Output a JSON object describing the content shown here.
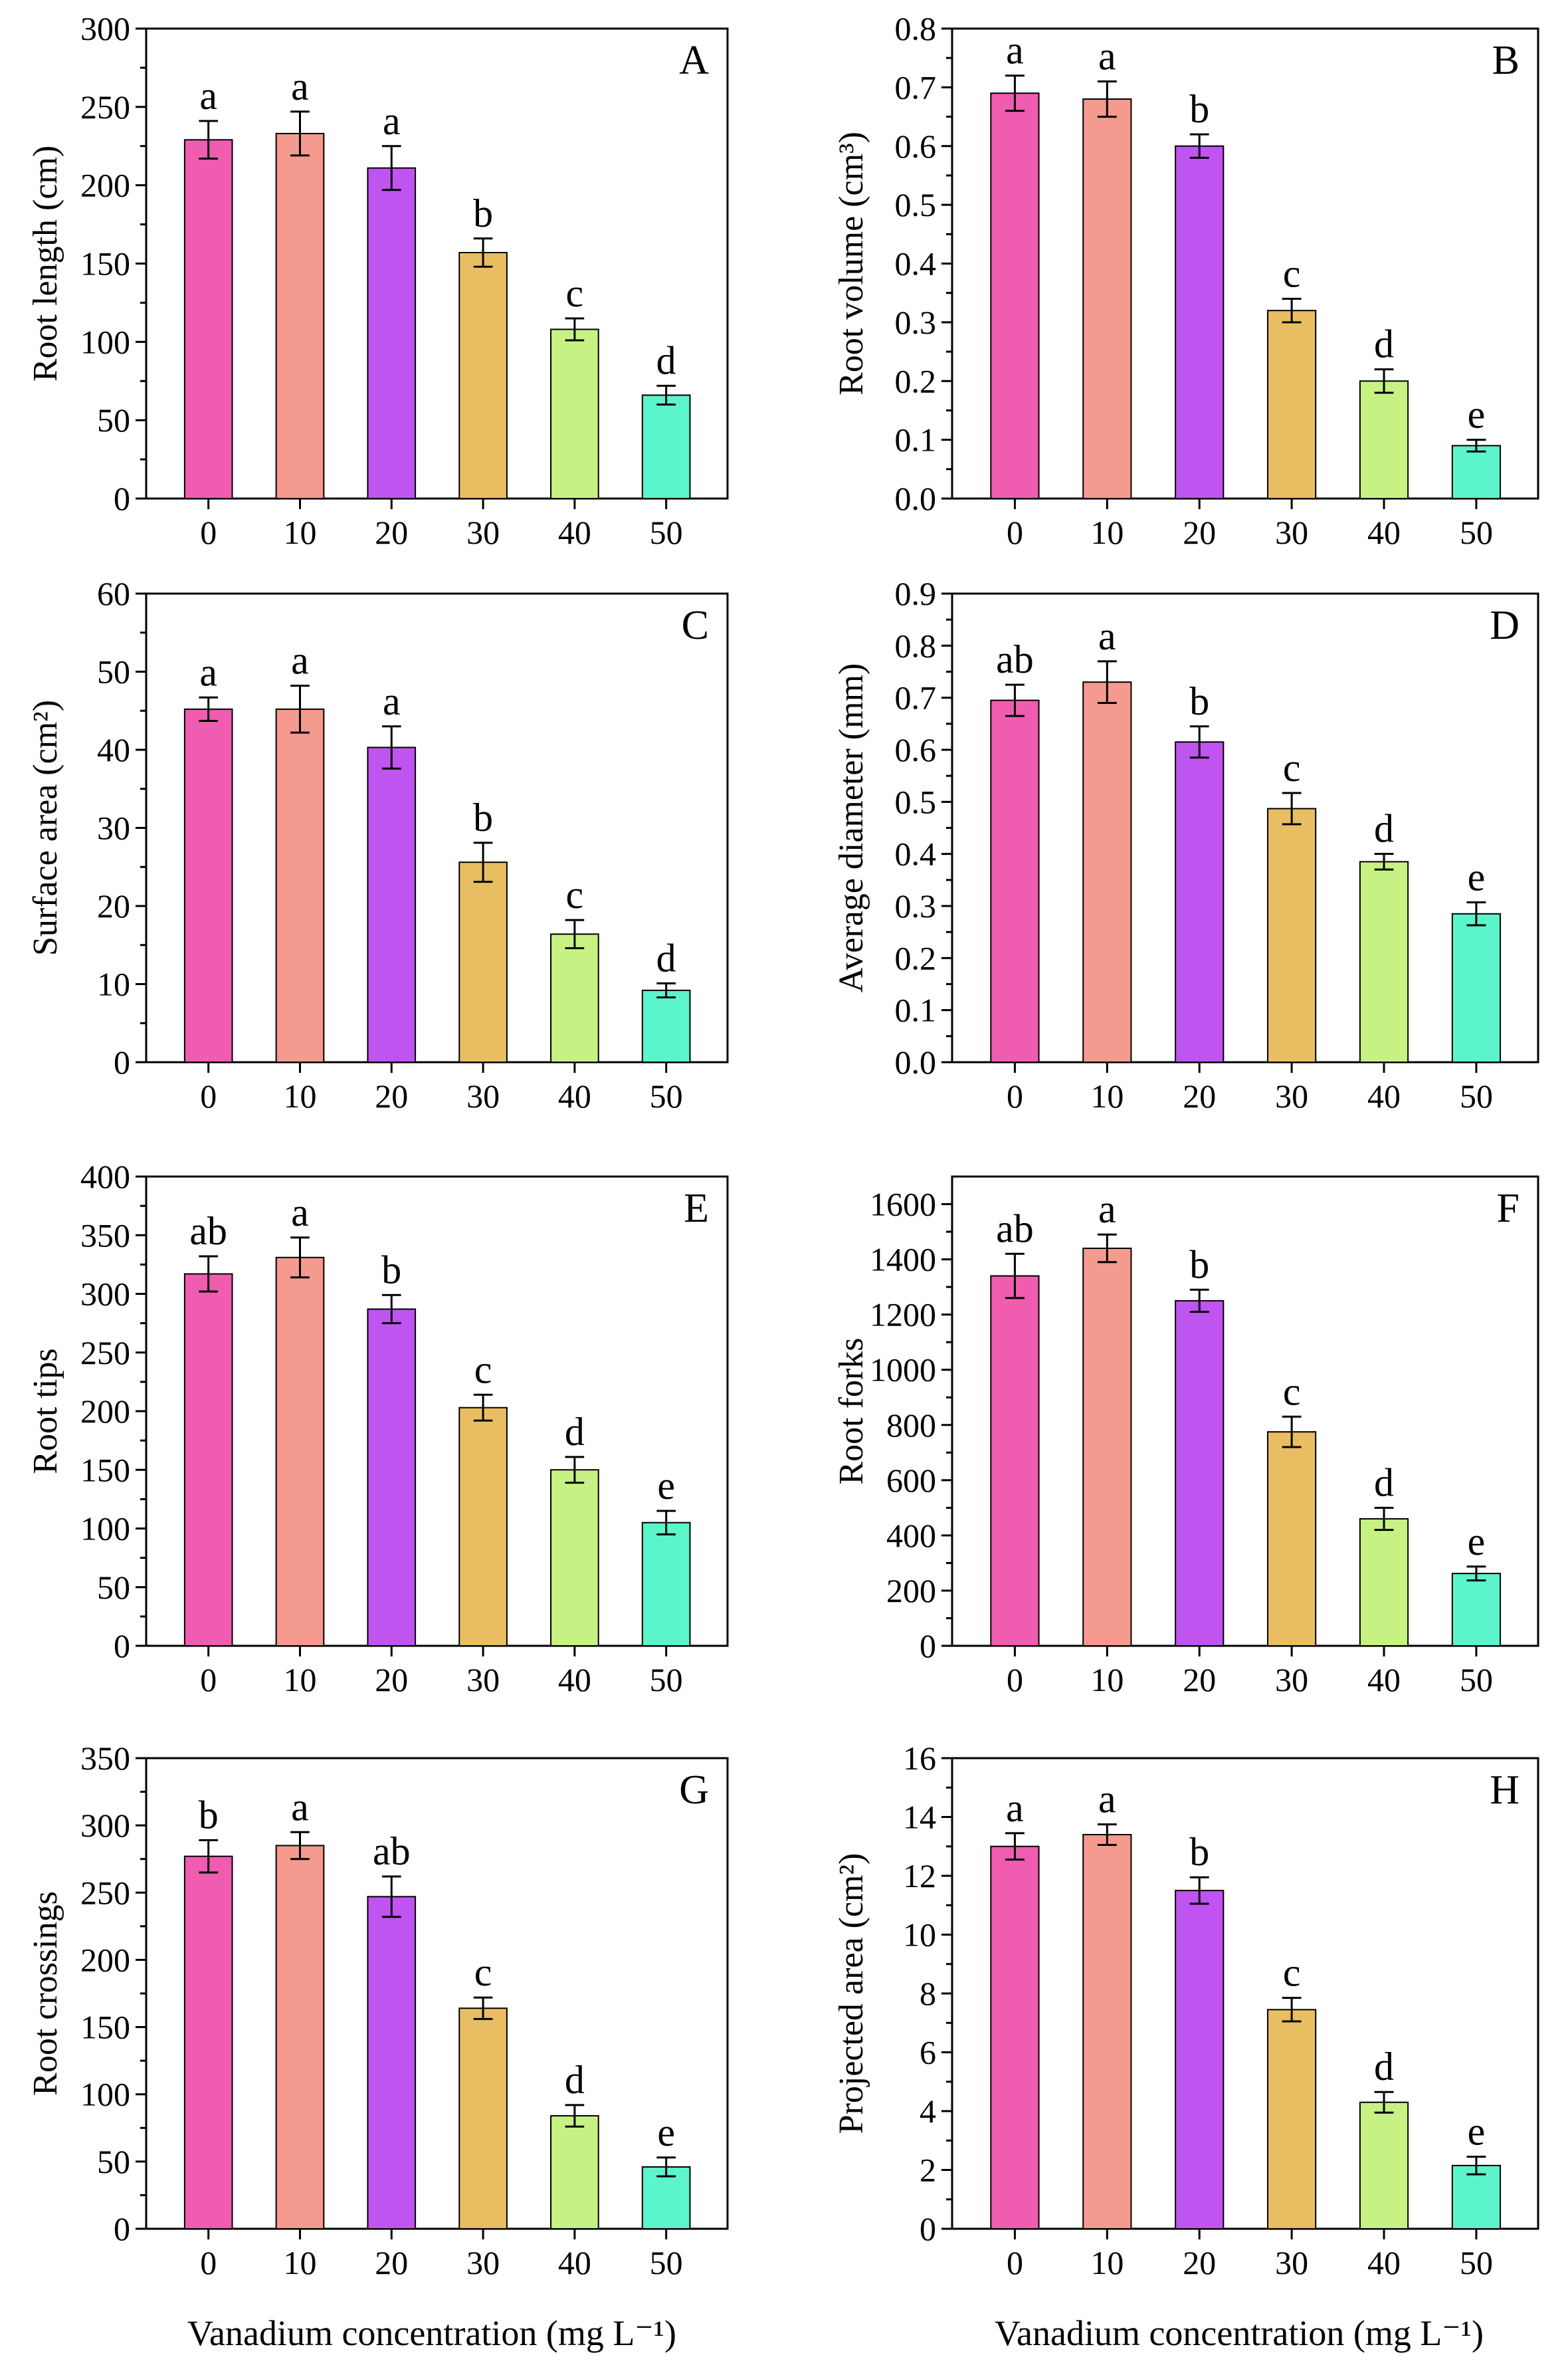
{
  "figure": {
    "xlabel_left": "Vanadium concentration (mg L⁻¹)",
    "xlabel_right": "Vanadium concentration (mg L⁻¹)"
  },
  "colors": [
    "#f05cb0",
    "#f59a8e",
    "#c054f0",
    "#e9be63",
    "#c6f283",
    "#5cf4cb"
  ],
  "chart_data": [
    {
      "type": "bar",
      "panel": "A",
      "title": "",
      "ylabel": "Root length (cm)",
      "categories": [
        "0",
        "10",
        "20",
        "30",
        "40",
        "50"
      ],
      "values": [
        229,
        233,
        211,
        157,
        108,
        66
      ],
      "errors": [
        12,
        14,
        14,
        9,
        7,
        6
      ],
      "letters": [
        "a",
        "a",
        "a",
        "b",
        "c",
        "d"
      ],
      "ylim": [
        0,
        300
      ],
      "yticks": [
        "0",
        "50",
        "100",
        "150",
        "200",
        "250",
        "300"
      ]
    },
    {
      "type": "bar",
      "panel": "B",
      "title": "",
      "ylabel": "Root volume (cm³)",
      "categories": [
        "0",
        "10",
        "20",
        "30",
        "40",
        "50"
      ],
      "values": [
        0.69,
        0.68,
        0.6,
        0.32,
        0.2,
        0.09
      ],
      "errors": [
        0.03,
        0.03,
        0.02,
        0.02,
        0.02,
        0.01
      ],
      "letters": [
        "a",
        "a",
        "b",
        "c",
        "d",
        "e"
      ],
      "ylim": [
        0,
        0.8
      ],
      "yticks": [
        "0.0",
        "0.1",
        "0.2",
        "0.3",
        "0.4",
        "0.5",
        "0.6",
        "0.7",
        "0.8"
      ]
    },
    {
      "type": "bar",
      "panel": "C",
      "title": "",
      "ylabel": "Surface area (cm²)",
      "categories": [
        "0",
        "10",
        "20",
        "30",
        "40",
        "50"
      ],
      "values": [
        45.2,
        45.2,
        40.3,
        25.6,
        16.4,
        9.2
      ],
      "errors": [
        1.5,
        3.0,
        2.7,
        2.5,
        1.8,
        0.9
      ],
      "letters": [
        "a",
        "a",
        "a",
        "b",
        "c",
        "d"
      ],
      "ylim": [
        0,
        60
      ],
      "yticks": [
        "0",
        "10",
        "20",
        "30",
        "40",
        "50",
        "60"
      ]
    },
    {
      "type": "bar",
      "panel": "D",
      "title": "",
      "ylabel": "Average diameter (mm)",
      "categories": [
        "0",
        "10",
        "20",
        "30",
        "40",
        "50"
      ],
      "values": [
        0.695,
        0.73,
        0.615,
        0.487,
        0.385,
        0.285
      ],
      "errors": [
        0.03,
        0.04,
        0.03,
        0.03,
        0.015,
        0.022
      ],
      "letters": [
        "ab",
        "a",
        "b",
        "c",
        "d",
        "e"
      ],
      "ylim": [
        0,
        0.9
      ],
      "yticks": [
        "0.0",
        "0.1",
        "0.2",
        "0.3",
        "0.4",
        "0.5",
        "0.6",
        "0.7",
        "0.8",
        "0.9"
      ]
    },
    {
      "type": "bar",
      "panel": "E",
      "title": "",
      "ylabel": "Root tips",
      "categories": [
        "0",
        "10",
        "20",
        "30",
        "40",
        "50"
      ],
      "values": [
        317,
        331,
        287,
        203,
        150,
        105
      ],
      "errors": [
        15,
        17,
        12,
        11,
        11,
        10
      ],
      "letters": [
        "ab",
        "a",
        "b",
        "c",
        "d",
        "e"
      ],
      "ylim": [
        0,
        400
      ],
      "yticks": [
        "0",
        "50",
        "100",
        "150",
        "200",
        "250",
        "300",
        "350",
        "400"
      ]
    },
    {
      "type": "bar",
      "panel": "F",
      "title": "",
      "ylabel": "Root forks",
      "categories": [
        "0",
        "10",
        "20",
        "30",
        "40",
        "50"
      ],
      "values": [
        1340,
        1440,
        1250,
        775,
        460,
        262
      ],
      "errors": [
        80,
        50,
        40,
        55,
        40,
        25
      ],
      "letters": [
        "ab",
        "a",
        "b",
        "c",
        "d",
        "e"
      ],
      "ylim": [
        0,
        1700
      ],
      "yticks": [
        "0",
        "200",
        "400",
        "600",
        "800",
        "1000",
        "1200",
        "1400",
        "1600"
      ]
    },
    {
      "type": "bar",
      "panel": "G",
      "title": "",
      "ylabel": "Root crossings",
      "categories": [
        "0",
        "10",
        "20",
        "30",
        "40",
        "50"
      ],
      "values": [
        277,
        285,
        247,
        164,
        84,
        46
      ],
      "errors": [
        12,
        10,
        15,
        8,
        8,
        7
      ],
      "letters": [
        "b",
        "a",
        "ab",
        "c",
        "d",
        "e"
      ],
      "ylim": [
        0,
        350
      ],
      "yticks": [
        "0",
        "50",
        "100",
        "150",
        "200",
        "250",
        "300",
        "350"
      ]
    },
    {
      "type": "bar",
      "panel": "H",
      "title": "",
      "ylabel": "Projected area (cm²)",
      "categories": [
        "0",
        "10",
        "20",
        "30",
        "40",
        "50"
      ],
      "values": [
        13.0,
        13.4,
        11.5,
        7.45,
        4.3,
        2.15
      ],
      "errors": [
        0.45,
        0.35,
        0.45,
        0.4,
        0.35,
        0.3
      ],
      "letters": [
        "a",
        "a",
        "b",
        "c",
        "d",
        "e"
      ],
      "ylim": [
        0,
        16
      ],
      "yticks": [
        "0",
        "2",
        "4",
        "6",
        "8",
        "10",
        "12",
        "14",
        "16"
      ]
    }
  ]
}
